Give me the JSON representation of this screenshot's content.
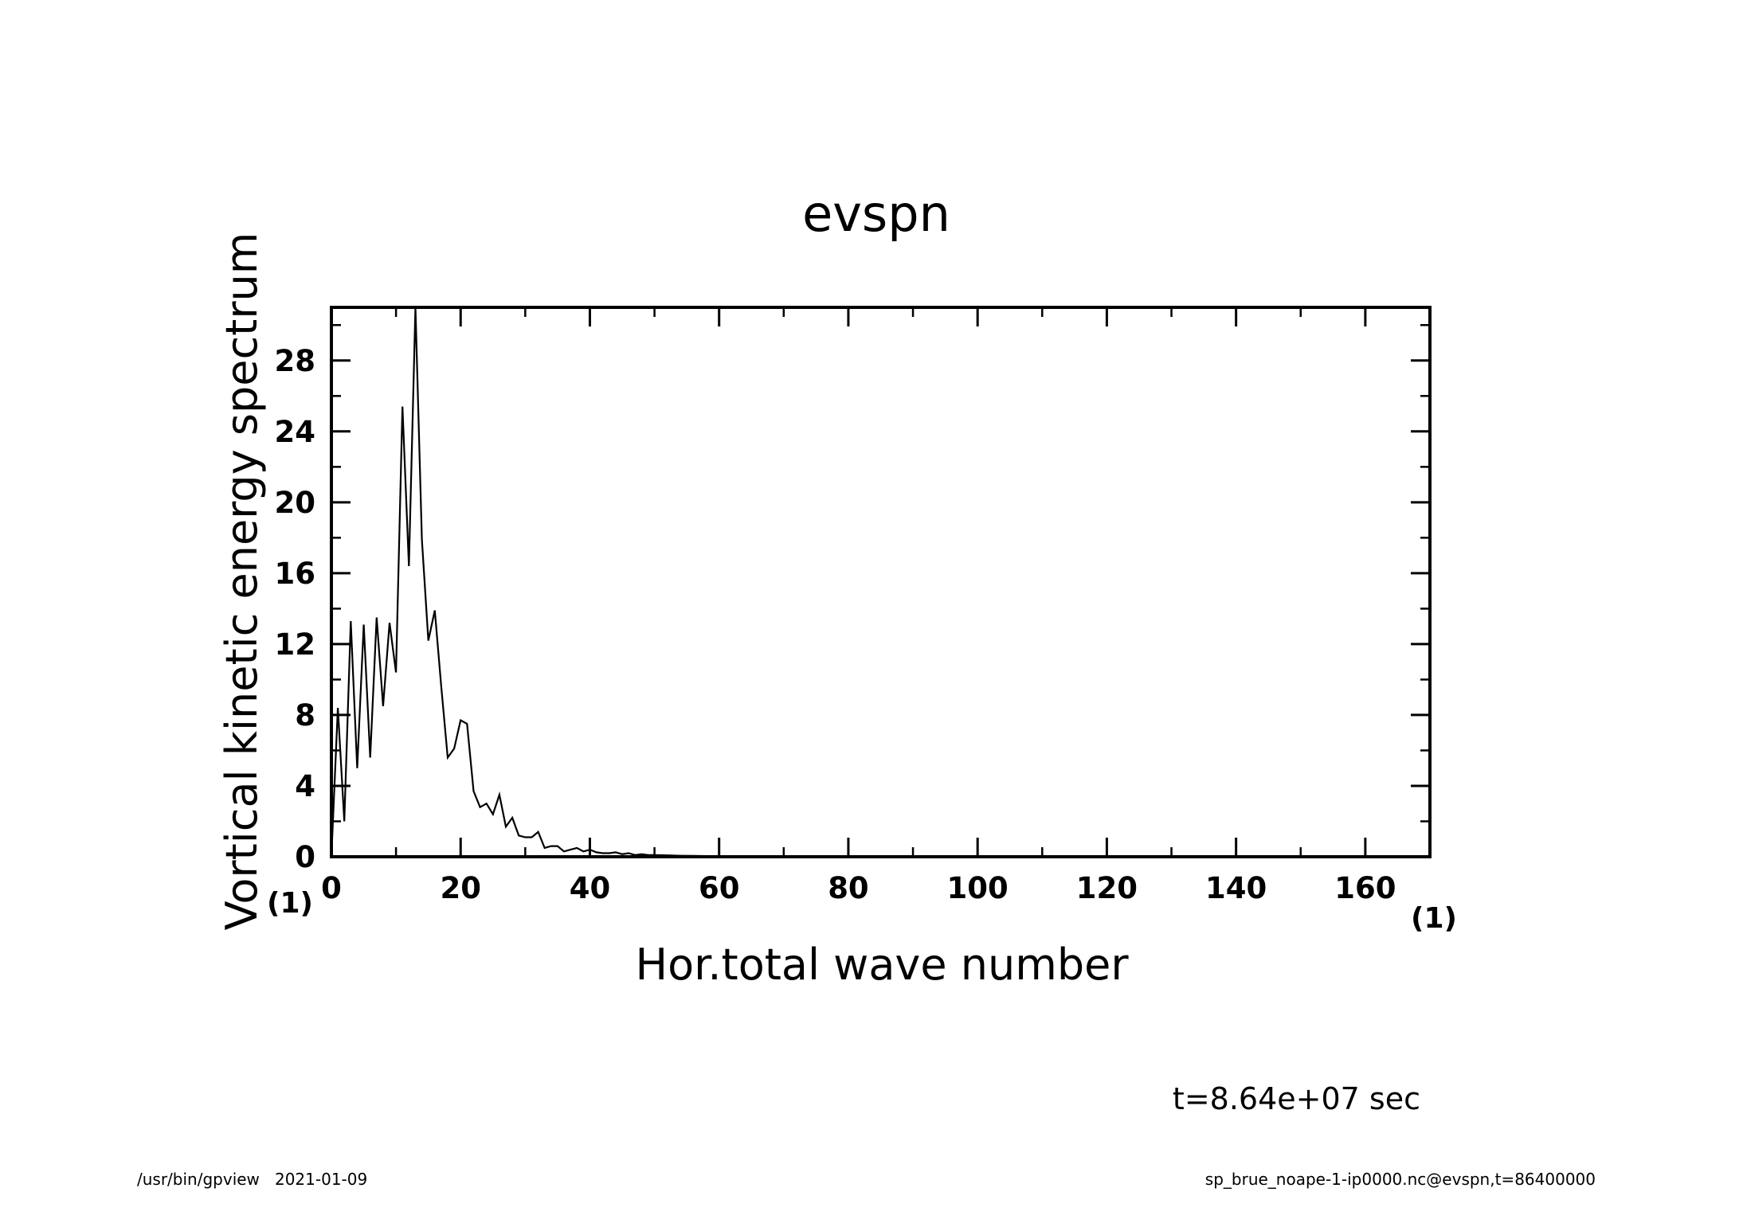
{
  "chart_data": {
    "type": "line",
    "title": "evspn",
    "xlabel": "Hor.total wave number",
    "ylabel": "Vortical kinetic energy spectrum",
    "x_unit": "(1)",
    "y_unit": "(1)",
    "xlim": [
      0,
      170
    ],
    "ylim": [
      0,
      31
    ],
    "x_ticks": [
      "0",
      "20",
      "40",
      "60",
      "80",
      "100",
      "120",
      "140",
      "160"
    ],
    "y_ticks": [
      "0",
      "4",
      "8",
      "12",
      "16",
      "20",
      "24",
      "28"
    ],
    "x_tick_values": [
      0,
      20,
      40,
      60,
      80,
      100,
      120,
      140,
      160
    ],
    "y_tick_values": [
      0,
      4,
      8,
      12,
      16,
      20,
      24,
      28
    ],
    "x_minor_step": 10,
    "y_minor_step": 2,
    "grid": false,
    "series": [
      {
        "x": [
          0,
          1,
          2,
          3,
          4,
          5,
          6,
          7,
          8,
          9,
          10,
          11,
          12,
          13,
          14,
          15,
          16,
          17,
          18,
          19,
          20,
          21,
          22,
          23,
          24,
          25,
          26,
          27,
          28,
          29,
          30,
          31,
          32,
          33,
          34,
          35,
          36,
          37,
          38,
          39,
          40,
          41,
          42,
          43,
          44,
          45,
          46,
          47,
          48,
          49,
          50,
          52,
          54,
          56,
          58,
          60,
          65,
          70,
          75,
          80,
          90,
          100,
          120,
          140,
          160,
          170
        ],
        "y": [
          0,
          8.4,
          2.0,
          13.3,
          5.0,
          13.1,
          5.6,
          13.5,
          8.5,
          13.2,
          10.4,
          25.4,
          16.4,
          31.0,
          17.9,
          12.2,
          13.9,
          9.6,
          5.6,
          6.1,
          7.7,
          7.5,
          3.7,
          2.8,
          3.0,
          2.4,
          3.5,
          1.7,
          2.2,
          1.2,
          1.1,
          1.1,
          1.4,
          0.5,
          0.6,
          0.6,
          0.3,
          0.4,
          0.5,
          0.3,
          0.4,
          0.25,
          0.2,
          0.2,
          0.25,
          0.15,
          0.2,
          0.1,
          0.15,
          0.1,
          0.1,
          0.08,
          0.06,
          0.05,
          0.04,
          0.03,
          0.02,
          0.01,
          0.01,
          0.0,
          0.0,
          0.0,
          0.0,
          0.0,
          0.0,
          0.0
        ]
      }
    ]
  },
  "timestamp": "t=8.64e+07 sec",
  "footer_left": "/usr/bin/gpview   2021-01-09",
  "footer_right": "sp_brue_noape-1-ip0000.nc@evspn,t=86400000"
}
